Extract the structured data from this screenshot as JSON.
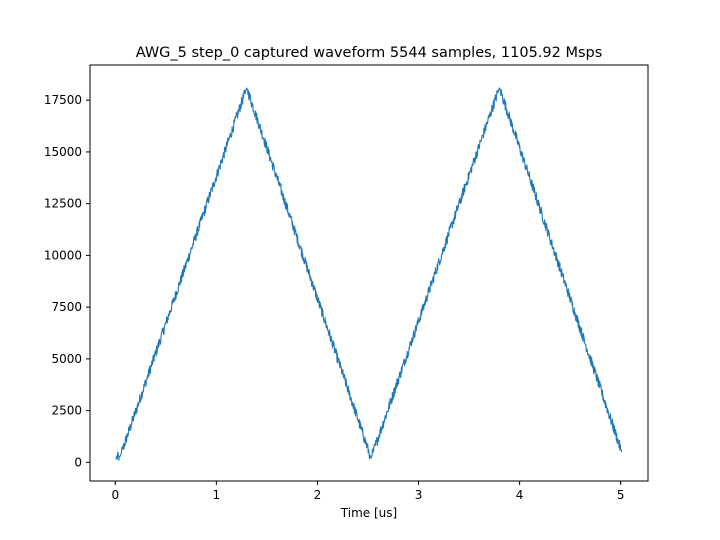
{
  "chart_data": {
    "type": "line",
    "title": "AWG_5 step_0 captured waveform 5544 samples, 1105.92 Msps",
    "xlabel": "Time [us]",
    "ylabel": "",
    "xlim": [
      -0.25,
      5.27
    ],
    "ylim": [
      -900,
      19200
    ],
    "xticks": [
      0,
      1,
      2,
      3,
      4,
      5
    ],
    "yticks": [
      0,
      2500,
      5000,
      7500,
      10000,
      12500,
      15000,
      17500
    ],
    "grid": false,
    "legend": "none",
    "series": [
      {
        "color": "#1f77b4",
        "x": [
          0.0,
          0.05,
          1.3,
          2.53,
          3.8,
          5.01
        ],
        "y": [
          200,
          300,
          18100,
          200,
          18100,
          500
        ],
        "noise_amplitude": 500
      }
    ]
  }
}
